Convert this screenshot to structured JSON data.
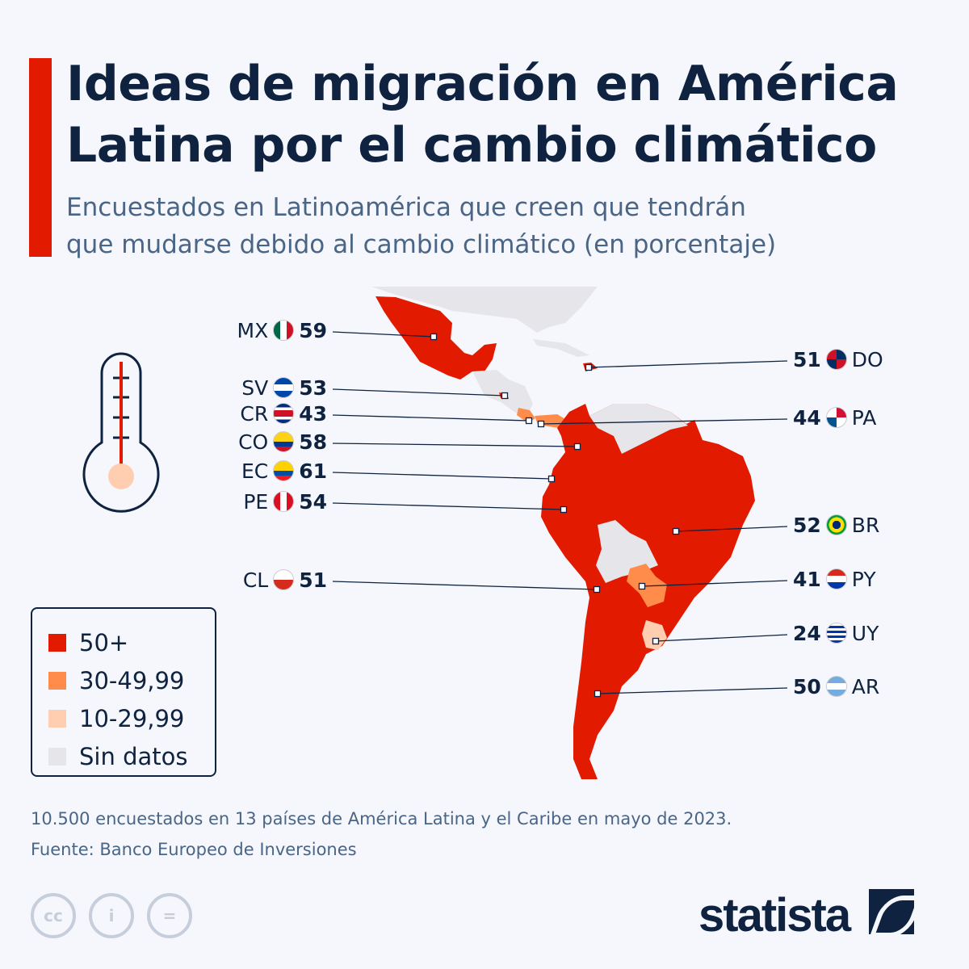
{
  "header": {
    "title_line1": "Ideas de migración en América",
    "title_line2": "Latina por el cambio climático",
    "subtitle_line1": "Encuestados en Latinoamérica que creen que tendrán",
    "subtitle_line2": "que mudarse debido al cambio climático (en porcentaje)"
  },
  "colors": {
    "50+": "#e21a00",
    "30-49,99": "#ff8c4a",
    "10-29,99": "#ffcdb0",
    "sin_datos": "#e6e6ea",
    "accent": "#e21a00"
  },
  "countries": [
    {
      "code": "MX",
      "value": "59",
      "side": "left",
      "category": "50+"
    },
    {
      "code": "SV",
      "value": "53",
      "side": "left",
      "category": "50+"
    },
    {
      "code": "CR",
      "value": "43",
      "side": "left",
      "category": "30-49,99"
    },
    {
      "code": "CO",
      "value": "58",
      "side": "left",
      "category": "50+"
    },
    {
      "code": "EC",
      "value": "61",
      "side": "left",
      "category": "50+"
    },
    {
      "code": "PE",
      "value": "54",
      "side": "left",
      "category": "50+"
    },
    {
      "code": "CL",
      "value": "51",
      "side": "left",
      "category": "50+"
    },
    {
      "code": "DO",
      "value": "51",
      "side": "right",
      "category": "50+"
    },
    {
      "code": "PA",
      "value": "44",
      "side": "right",
      "category": "30-49,99"
    },
    {
      "code": "BR",
      "value": "52",
      "side": "right",
      "category": "50+"
    },
    {
      "code": "PY",
      "value": "41",
      "side": "right",
      "category": "30-49,99"
    },
    {
      "code": "UY",
      "value": "24",
      "side": "right",
      "category": "10-29,99"
    },
    {
      "code": "AR",
      "value": "50",
      "side": "right",
      "category": "50+"
    }
  ],
  "legend": [
    "50+",
    "30-49,99",
    "10-29,99",
    "Sin datos"
  ],
  "footer": {
    "note": "10.500 encuestados en 13 países de América Latina y el Caribe en mayo de 2023.",
    "source": "Fuente: Banco Europeo de Inversiones"
  },
  "icons": [
    "thermometer-icon",
    "cc-icon",
    "by-icon",
    "nd-icon"
  ],
  "logo": "statista"
}
